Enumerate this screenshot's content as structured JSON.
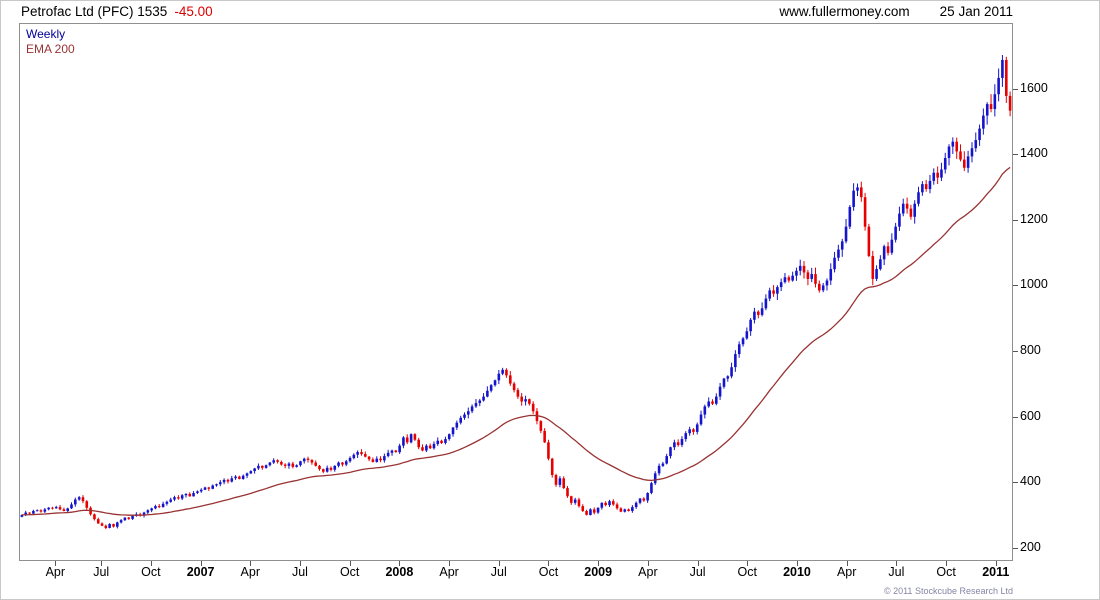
{
  "header": {
    "title": "Petrofac Ltd (PFC) 1535",
    "change": "-45.00",
    "site": "www.fullermoney.com",
    "date": "25 Jan 2011"
  },
  "legend": {
    "timeframe": "Weekly",
    "overlay": "EMA 200"
  },
  "footer": {
    "copyright": "© 2011 Stockcube Research Ltd"
  },
  "colors": {
    "up": "#1414cc",
    "down": "#e60000",
    "ema": "#993333",
    "legend_timeframe": "#000099",
    "axis": "#555555",
    "change": "#dd0000"
  },
  "chart_data": {
    "type": "candlestick",
    "title": "Petrofac Ltd (PFC)",
    "timeframe": "Weekly",
    "last_price": 1535,
    "change": -45.0,
    "overlay": {
      "label": "EMA 200",
      "period_weeks": 40
    },
    "grid": "off",
    "legend_position": "top-left",
    "y_axis": {
      "side": "right",
      "ticks": [
        200,
        400,
        600,
        800,
        1000,
        1200,
        1400,
        1600
      ],
      "range": [
        160,
        1800
      ]
    },
    "x_axis": {
      "start": "Feb 2006",
      "end": "Jan 2011",
      "interval": "weekly",
      "ticks": [
        {
          "label": "Apr",
          "week": 9,
          "year": false
        },
        {
          "label": "Jul",
          "week": 21,
          "year": false
        },
        {
          "label": "Oct",
          "week": 34,
          "year": false
        },
        {
          "label": "2007",
          "week": 47,
          "year": true
        },
        {
          "label": "Apr",
          "week": 60,
          "year": false
        },
        {
          "label": "Jul",
          "week": 73,
          "year": false
        },
        {
          "label": "Oct",
          "week": 86,
          "year": false
        },
        {
          "label": "2008",
          "week": 99,
          "year": true
        },
        {
          "label": "Apr",
          "week": 112,
          "year": false
        },
        {
          "label": "Jul",
          "week": 125,
          "year": false
        },
        {
          "label": "Oct",
          "week": 138,
          "year": false
        },
        {
          "label": "2009",
          "week": 151,
          "year": true
        },
        {
          "label": "Apr",
          "week": 164,
          "year": false
        },
        {
          "label": "Jul",
          "week": 177,
          "year": false
        },
        {
          "label": "Oct",
          "week": 190,
          "year": false
        },
        {
          "label": "2010",
          "week": 203,
          "year": true
        },
        {
          "label": "Apr",
          "week": 216,
          "year": false
        },
        {
          "label": "Jul",
          "week": 229,
          "year": false
        },
        {
          "label": "Oct",
          "week": 242,
          "year": false
        },
        {
          "label": "2011",
          "week": 255,
          "year": true
        }
      ]
    },
    "first_open": 292,
    "wick_factor": 0.02,
    "closes": [
      298,
      305,
      302,
      310,
      312,
      308,
      315,
      320,
      318,
      322,
      315,
      310,
      318,
      330,
      345,
      352,
      340,
      320,
      300,
      285,
      272,
      265,
      258,
      270,
      262,
      275,
      282,
      290,
      286,
      295,
      300,
      296,
      305,
      312,
      318,
      325,
      322,
      332,
      338,
      345,
      352,
      348,
      358,
      362,
      355,
      365,
      370,
      375,
      382,
      378,
      388,
      392,
      398,
      405,
      400,
      410,
      415,
      408,
      418,
      425,
      432,
      440,
      448,
      442,
      450,
      458,
      465,
      460,
      452,
      448,
      455,
      445,
      450,
      462,
      470,
      466,
      458,
      448,
      438,
      430,
      442,
      436,
      448,
      458,
      452,
      462,
      472,
      482,
      490,
      484,
      476,
      468,
      460,
      470,
      465,
      478,
      488,
      495,
      490,
      510,
      535,
      520,
      545,
      528,
      505,
      495,
      510,
      502,
      515,
      525,
      518,
      530,
      545,
      565,
      580,
      595,
      605,
      615,
      630,
      640,
      648,
      660,
      678,
      695,
      710,
      730,
      742,
      725,
      700,
      680,
      660,
      645,
      652,
      638,
      615,
      585,
      555,
      520,
      470,
      420,
      390,
      410,
      380,
      355,
      335,
      345,
      325,
      310,
      298,
      315,
      305,
      320,
      335,
      328,
      340,
      330,
      318,
      308,
      315,
      310,
      322,
      335,
      348,
      342,
      365,
      395,
      425,
      448,
      455,
      478,
      505,
      520,
      512,
      530,
      548,
      560,
      552,
      575,
      605,
      630,
      645,
      638,
      660,
      690,
      715,
      722,
      750,
      790,
      820,
      838,
      860,
      895,
      920,
      910,
      930,
      960,
      985,
      975,
      995,
      1010,
      1025,
      1015,
      1030,
      1045,
      1060,
      1040,
      1020,
      1035,
      1005,
      985,
      1000,
      1015,
      1050,
      1085,
      1110,
      1135,
      1180,
      1240,
      1290,
      1300,
      1270,
      1180,
      1090,
      1020,
      1050,
      1080,
      1120,
      1100,
      1140,
      1180,
      1220,
      1250,
      1235,
      1210,
      1250,
      1285,
      1310,
      1295,
      1320,
      1345,
      1330,
      1355,
      1390,
      1425,
      1440,
      1410,
      1385,
      1360,
      1395,
      1420,
      1445,
      1480,
      1520,
      1555,
      1540,
      1585,
      1635,
      1690,
      1580,
      1535
    ]
  }
}
